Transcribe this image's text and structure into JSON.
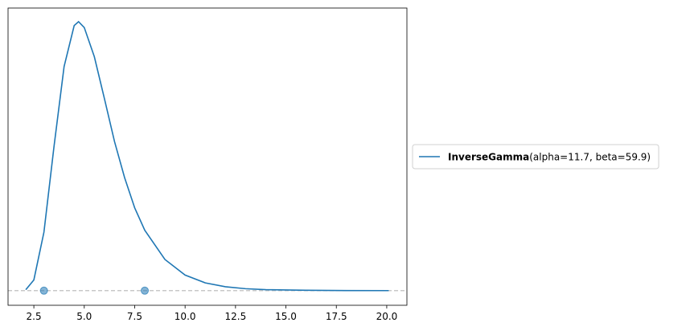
{
  "chart_data": {
    "type": "line",
    "x": [
      2.1,
      2.5,
      3,
      3.5,
      4,
      4.5,
      4.717,
      5,
      5.5,
      6,
      6.5,
      7,
      7.5,
      8,
      9,
      10,
      11,
      12,
      13,
      14,
      16,
      18,
      20.1
    ],
    "series": [
      {
        "name": "InverseGamma",
        "params": "(alpha=11.7, beta=59.9)",
        "color": "#1f77b4",
        "values": [
          0.001,
          0.011,
          0.06,
          0.148,
          0.23,
          0.272,
          0.276,
          0.27,
          0.24,
          0.197,
          0.153,
          0.116,
          0.085,
          0.062,
          0.032,
          0.016,
          0.008,
          0.004,
          0.002,
          0.001,
          0.0004,
          0.0001,
          5e-05
        ]
      }
    ],
    "points": {
      "x": [
        3,
        8
      ],
      "y": [
        0,
        0
      ],
      "color": "#1f77b4"
    },
    "reference_line": 0,
    "xlim": [
      1.22,
      21.0
    ],
    "ylim": [
      -0.015,
      0.29
    ],
    "xticks": [
      2.5,
      {
        "value": 5,
        "label": "5.0"
      },
      7.5,
      {
        "value": 10,
        "label": "10.0"
      },
      12.5,
      {
        "value": 15,
        "label": "15.0"
      },
      17.5,
      {
        "value": 20,
        "label": "20.0"
      }
    ],
    "legend": "right"
  }
}
